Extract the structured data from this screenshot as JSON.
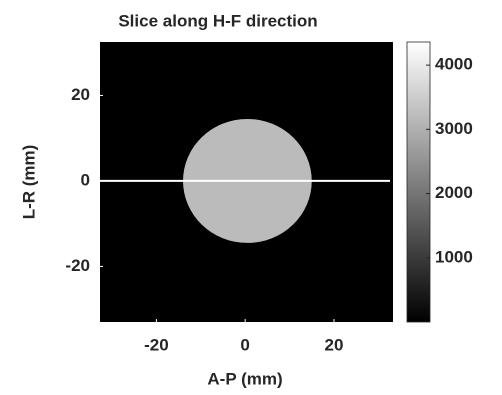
{
  "chart_data": {
    "type": "image",
    "title": "Slice along H-F direction",
    "x_label": "A-P (mm)",
    "y_label": "L-R (mm)",
    "xlim": [
      -32.7,
      33.3
    ],
    "ylim": [
      -33,
      32.5
    ],
    "xticks": [
      -20,
      0,
      20
    ],
    "yticks": [
      -20,
      0,
      20
    ],
    "colormap": "gray",
    "clim": [
      0,
      4360
    ],
    "cticks": [
      1000,
      2000,
      3000,
      4000
    ],
    "disk": {
      "cx": 0.5,
      "cy": 0,
      "r": 14.5,
      "value": 3200
    },
    "slice_line_y": 0
  }
}
